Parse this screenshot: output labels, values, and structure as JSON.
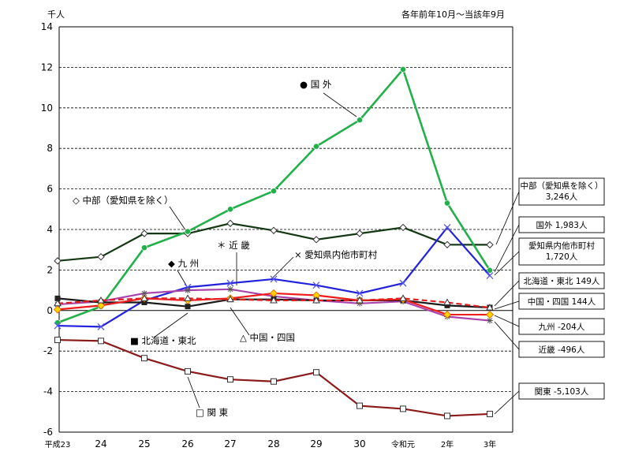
{
  "chart_data": {
    "type": "line",
    "unit_label": "千人",
    "period_note": "各年前年10月～当該年9月",
    "categories": [
      "平成23",
      "24",
      "25",
      "26",
      "27",
      "28",
      "29",
      "30",
      "令和元",
      "2年",
      "3年"
    ],
    "ylim": [
      -6,
      14
    ],
    "yticks": [
      -6,
      -4,
      -2,
      0,
      2,
      4,
      6,
      8,
      10,
      12,
      14
    ],
    "grid": true,
    "series": [
      {
        "name": "国 外",
        "key": "kokugai",
        "color": "#22b04a",
        "marker": "circle",
        "values": [
          -0.6,
          0.2,
          3.1,
          3.9,
          5.0,
          5.9,
          8.1,
          9.4,
          11.9,
          5.3,
          1.983
        ]
      },
      {
        "name": "中部（愛知県を除く）",
        "key": "chubu",
        "color": "#143814",
        "marker": "diamond-open",
        "values": [
          2.45,
          2.65,
          3.8,
          3.8,
          4.3,
          3.95,
          3.5,
          3.8,
          4.1,
          3.25,
          3.246
        ]
      },
      {
        "name": "愛知県内他市町村",
        "key": "aichi",
        "color": "#2222dd",
        "marker": "x",
        "values": [
          -0.75,
          -0.8,
          0.5,
          1.15,
          1.35,
          1.55,
          1.25,
          0.85,
          1.35,
          4.1,
          1.72
        ]
      },
      {
        "name": "北海道・東北",
        "key": "hokkaido",
        "color": "#1a1a1a",
        "marker": "square",
        "values": [
          0.6,
          0.4,
          0.4,
          0.2,
          0.55,
          0.55,
          0.5,
          0.5,
          0.5,
          0.25,
          0.149
        ]
      },
      {
        "name": "中国・四国",
        "key": "chugoku",
        "color": "#e02020",
        "marker": "triangle-open",
        "dashed": true,
        "values": [
          0.35,
          0.5,
          0.6,
          0.6,
          0.55,
          0.5,
          0.5,
          0.5,
          0.6,
          0.4,
          0.144
        ]
      },
      {
        "name": "九 州",
        "key": "kyushu",
        "color": "#ee1c1c",
        "marker": "diamond-yellow",
        "values": [
          0.05,
          0.25,
          0.6,
          0.5,
          0.6,
          0.85,
          0.75,
          0.5,
          0.55,
          -0.2,
          -0.204
        ]
      },
      {
        "name": "近 畿",
        "key": "kinki",
        "color": "#aa44aa",
        "marker": "asterisk",
        "values": [
          0.3,
          0.45,
          0.85,
          1.0,
          1.05,
          0.7,
          0.5,
          0.35,
          0.45,
          -0.3,
          -0.496
        ]
      },
      {
        "name": "関 東",
        "key": "kanto",
        "color": "#8b1a1a",
        "marker": "square-open",
        "values": [
          -1.45,
          -1.5,
          -2.35,
          -3.0,
          -3.4,
          -3.5,
          -3.05,
          -4.7,
          -4.85,
          -5.2,
          -5.103
        ]
      }
    ],
    "annotations": [
      {
        "key": "kokugai",
        "text": "● 国 外"
      },
      {
        "key": "chubu",
        "text": "◇ 中部（愛知県を除く）"
      },
      {
        "key": "kyushu",
        "text": "◆ 九 州"
      },
      {
        "key": "kinki",
        "text": "＊ 近 畿"
      },
      {
        "key": "aichi",
        "text": "× 愛知県内他市町村"
      },
      {
        "key": "hokkaido",
        "text": "■ 北海道・東北"
      },
      {
        "key": "chugoku",
        "text": "△ 中国・四国"
      },
      {
        "key": "kanto",
        "text": "□ 関 東"
      }
    ],
    "end_labels": [
      {
        "key": "chubu",
        "lines": [
          "中部（愛知県を除く）",
          "3,246人"
        ]
      },
      {
        "key": "kokugai",
        "lines": [
          "国外 1,983人"
        ]
      },
      {
        "key": "aichi",
        "lines": [
          "愛知県内他市町村",
          "1,720人"
        ]
      },
      {
        "key": "hokkaido",
        "lines": [
          "北海道・東北 149人"
        ]
      },
      {
        "key": "chugoku",
        "lines": [
          "中国・四国 144人"
        ]
      },
      {
        "key": "kyushu",
        "lines": [
          "九州 -204人"
        ]
      },
      {
        "key": "kinki",
        "lines": [
          "近畿 -496人"
        ]
      },
      {
        "key": "kanto",
        "lines": [
          "関東 -5,103人"
        ]
      }
    ]
  }
}
